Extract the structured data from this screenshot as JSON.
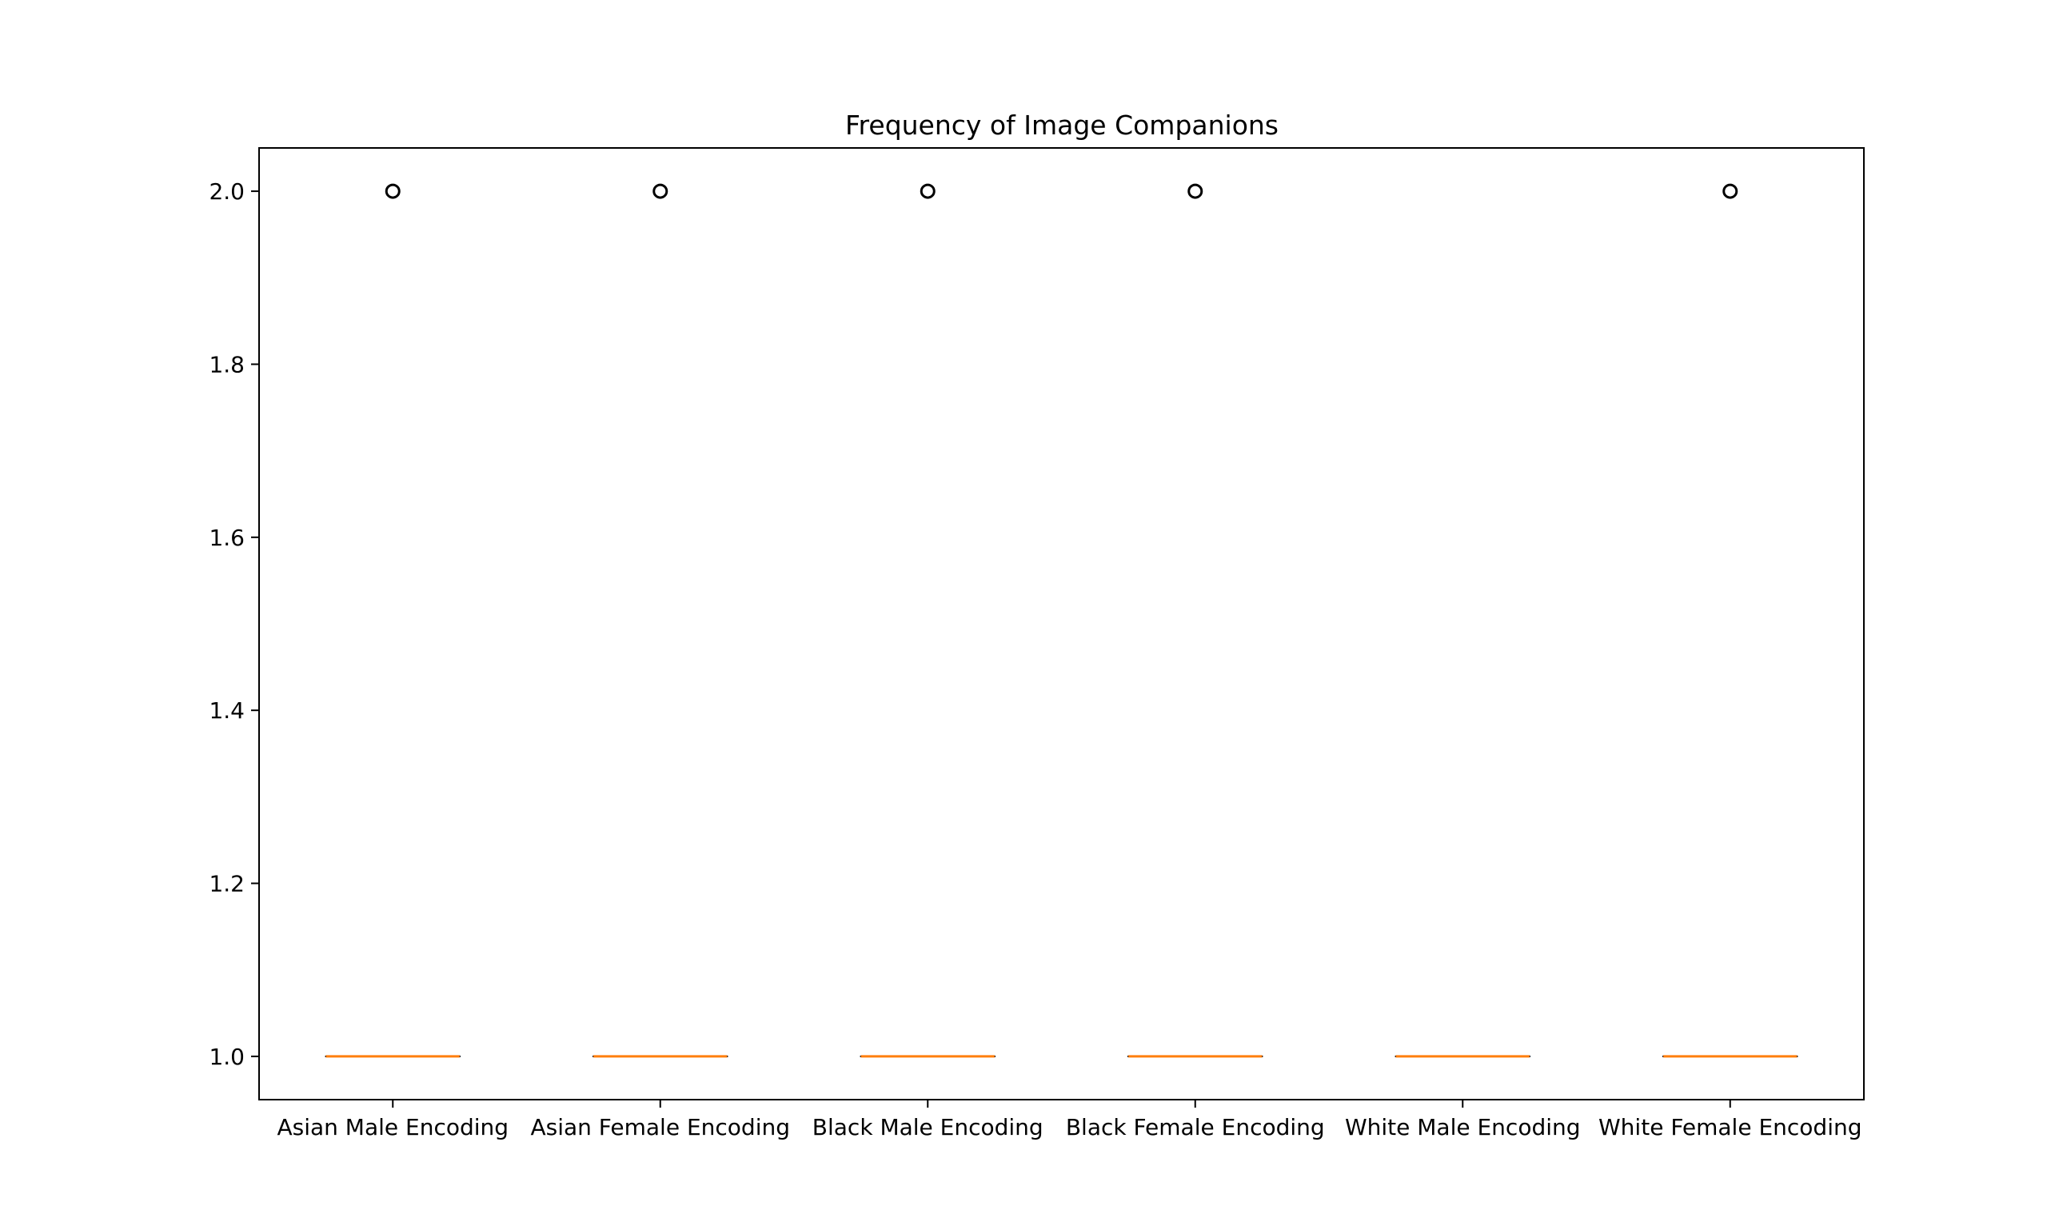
{
  "chart_data": {
    "type": "box",
    "title": "Frequency of Image Companions",
    "xlabel": "",
    "ylabel": "",
    "categories": [
      "Asian Male Encoding",
      "Asian Female Encoding",
      "Black Male Encoding",
      "Black Female Encoding",
      "White Male Encoding",
      "White Female Encoding"
    ],
    "boxes": [
      {
        "name": "Asian Male Encoding",
        "q1": 1.0,
        "median": 1.0,
        "q3": 1.0,
        "whisker_low": 1.0,
        "whisker_high": 1.0,
        "fliers": [
          2.0
        ]
      },
      {
        "name": "Asian Female Encoding",
        "q1": 1.0,
        "median": 1.0,
        "q3": 1.0,
        "whisker_low": 1.0,
        "whisker_high": 1.0,
        "fliers": [
          2.0
        ]
      },
      {
        "name": "Black Male Encoding",
        "q1": 1.0,
        "median": 1.0,
        "q3": 1.0,
        "whisker_low": 1.0,
        "whisker_high": 1.0,
        "fliers": [
          2.0
        ]
      },
      {
        "name": "Black Female Encoding",
        "q1": 1.0,
        "median": 1.0,
        "q3": 1.0,
        "whisker_low": 1.0,
        "whisker_high": 1.0,
        "fliers": [
          2.0
        ]
      },
      {
        "name": "White Male Encoding",
        "q1": 1.0,
        "median": 1.0,
        "q3": 1.0,
        "whisker_low": 1.0,
        "whisker_high": 1.0,
        "fliers": []
      },
      {
        "name": "White Female Encoding",
        "q1": 1.0,
        "median": 1.0,
        "q3": 1.0,
        "whisker_low": 1.0,
        "whisker_high": 1.0,
        "fliers": [
          2.0
        ]
      }
    ],
    "ylim": [
      0.95,
      2.05
    ],
    "yticks": [
      1.0,
      1.2,
      1.4,
      1.6,
      1.8,
      2.0
    ],
    "ytick_labels": [
      "1.0",
      "1.2",
      "1.4",
      "1.6",
      "1.8",
      "2.0"
    ],
    "grid": false,
    "colors": {
      "median": "#ff7f0e",
      "flier": "#000000",
      "axis": "#000000"
    }
  }
}
